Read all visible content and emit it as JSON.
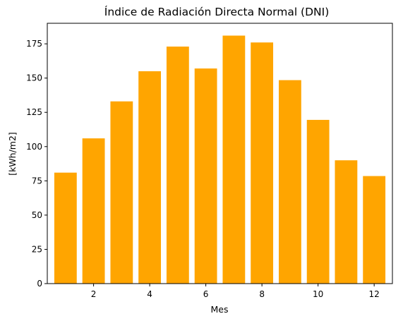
{
  "chart_data": {
    "type": "bar",
    "title": "Índice de Radiación Directa Normal (DNI)",
    "xlabel": "Mes",
    "ylabel": "[kWh/m2]",
    "x": [
      1,
      2,
      3,
      4,
      5,
      6,
      7,
      8,
      9,
      10,
      11,
      12
    ],
    "values": [
      81,
      106,
      133,
      155,
      173,
      157,
      181,
      176,
      148.5,
      119.5,
      90,
      78.5
    ],
    "xlim": [
      0.35,
      12.65
    ],
    "ylim": [
      0,
      190
    ],
    "xticks": [
      "2",
      "4",
      "6",
      "8",
      "10",
      "12"
    ],
    "yticks": [
      "0",
      "25",
      "50",
      "75",
      "100",
      "125",
      "150",
      "175"
    ],
    "bar_color": "#ffa500",
    "grid": false
  }
}
